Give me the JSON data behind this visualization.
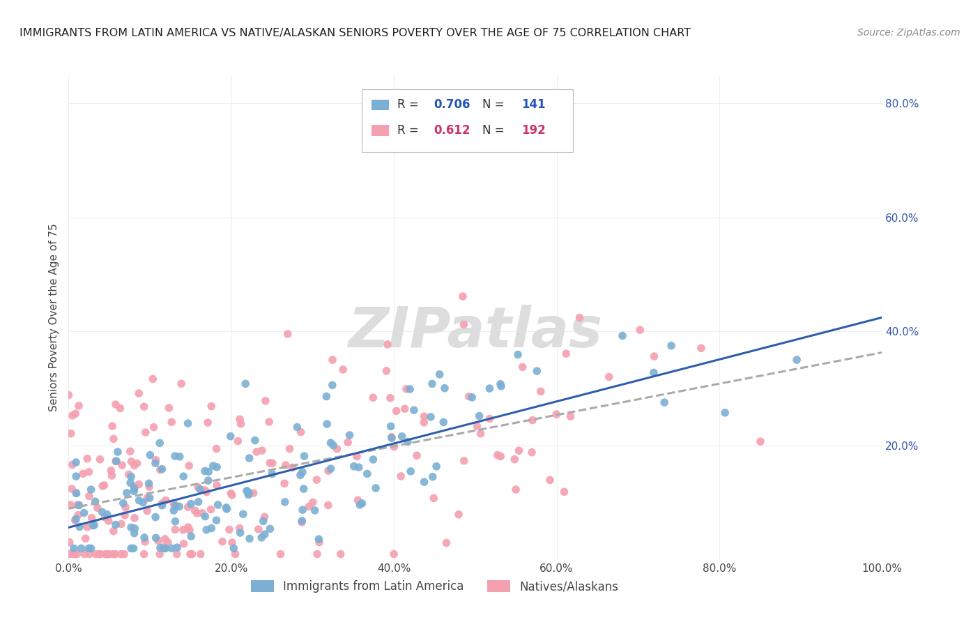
{
  "title": "IMMIGRANTS FROM LATIN AMERICA VS NATIVE/ALASKAN SENIORS POVERTY OVER THE AGE OF 75 CORRELATION CHART",
  "source": "Source: ZipAtlas.com",
  "ylabel": "Seniors Poverty Over the Age of 75",
  "xlim": [
    0.0,
    1.0
  ],
  "ylim": [
    0.0,
    0.85
  ],
  "xticks": [
    0.0,
    0.2,
    0.4,
    0.6,
    0.8,
    1.0
  ],
  "xticklabels": [
    "0.0%",
    "20.0%",
    "40.0%",
    "60.0%",
    "80.0%",
    "100.0%"
  ],
  "yticks": [
    0.0,
    0.2,
    0.4,
    0.6,
    0.8
  ],
  "yticklabels": [
    "",
    "20.0%",
    "40.0%",
    "60.0%",
    "80.0%"
  ],
  "blue_dot_color": "#7BAFD4",
  "pink_dot_color": "#F4A0B0",
  "blue_line_color": "#2E5FAC",
  "pink_line_color": "#C0395A",
  "dashed_line_color": "#AAAAAA",
  "watermark_color": "#DDDDDD",
  "r_blue": 0.706,
  "n_blue": 141,
  "r_pink": 0.612,
  "n_pink": 192,
  "legend_label_blue": "Immigrants from Latin America",
  "legend_label_pink": "Natives/Alaskans",
  "background_color": "#FFFFFF",
  "grid_color": "#EEEEEE",
  "legend_text_color": "#333333",
  "blue_val_color": "#2255BB",
  "pink_val_color": "#CC3366",
  "title_color": "#222222",
  "source_color": "#888888",
  "axis_color": "#444444"
}
